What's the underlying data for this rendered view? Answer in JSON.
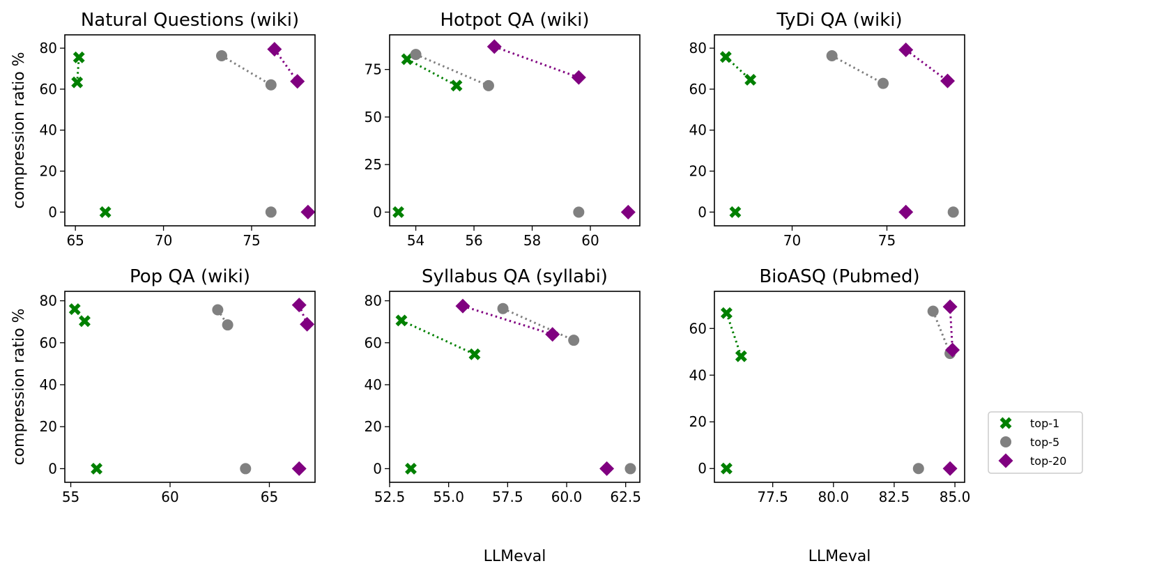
{
  "figure": {
    "ylabel": "compression ratio %",
    "xlabel": "LLMeval"
  },
  "legend": {
    "entries": [
      {
        "label": "top-1",
        "marker": "x-marker",
        "color": "#008000"
      },
      {
        "label": "top-5",
        "marker": "circle",
        "color": "#808080"
      },
      {
        "label": "top-20",
        "marker": "diamond",
        "color": "#800080"
      }
    ],
    "placement": "right"
  },
  "chart_data": [
    {
      "type": "scatter",
      "title": "Natural Questions (wiki)",
      "xlabel": "",
      "ylabel": "compression ratio %",
      "xlim": [
        64.4,
        78.6
      ],
      "ylim": [
        -6.7,
        86.5
      ],
      "xticks": [
        65,
        70,
        75
      ],
      "yticks": [
        0,
        20,
        40,
        60,
        80
      ],
      "xtick_labels": [
        "65",
        "70",
        "75"
      ],
      "ytick_labels": [
        "0",
        "20",
        "40",
        "60",
        "80"
      ],
      "series": [
        {
          "name": "top-1",
          "points": [
            [
              65.2,
              75.5
            ],
            [
              65.1,
              63.3
            ],
            [
              66.7,
              0
            ]
          ],
          "connect": [
            0,
            1
          ]
        },
        {
          "name": "top-5",
          "points": [
            [
              73.3,
              76.3
            ],
            [
              76.1,
              62.1
            ],
            [
              76.1,
              0
            ]
          ],
          "connect": [
            0,
            1
          ]
        },
        {
          "name": "top-20",
          "points": [
            [
              76.3,
              79.5
            ],
            [
              77.6,
              63.8
            ],
            [
              78.2,
              0
            ]
          ],
          "connect": [
            0,
            1
          ]
        }
      ]
    },
    {
      "type": "scatter",
      "title": "Hotpot QA (wiki)",
      "xlabel": "",
      "ylabel": "",
      "xlim": [
        53.1,
        61.7
      ],
      "ylim": [
        -7.2,
        93.2
      ],
      "xticks": [
        54,
        56,
        58,
        60
      ],
      "yticks": [
        0,
        25,
        50,
        75
      ],
      "xtick_labels": [
        "54",
        "56",
        "58",
        "60"
      ],
      "ytick_labels": [
        "0",
        "25",
        "50",
        "75"
      ],
      "series": [
        {
          "name": "top-1",
          "points": [
            [
              53.7,
              80.4
            ],
            [
              55.4,
              66.5
            ],
            [
              53.4,
              0
            ]
          ],
          "connect": [
            0,
            1
          ]
        },
        {
          "name": "top-5",
          "points": [
            [
              54.0,
              82.9
            ],
            [
              56.5,
              66.5
            ],
            [
              59.6,
              0
            ]
          ],
          "connect": [
            0,
            1
          ]
        },
        {
          "name": "top-20",
          "points": [
            [
              56.7,
              87.0
            ],
            [
              59.6,
              70.8
            ],
            [
              61.3,
              0
            ]
          ],
          "connect": [
            0,
            1
          ]
        }
      ]
    },
    {
      "type": "scatter",
      "title": "TyDi QA (wiki)",
      "xlabel": "",
      "ylabel": "",
      "xlim": [
        65.9,
        79.1
      ],
      "ylim": [
        -6.7,
        86.5
      ],
      "xticks": [
        70,
        75
      ],
      "yticks": [
        0,
        20,
        40,
        60,
        80
      ],
      "xtick_labels": [
        "70",
        "75"
      ],
      "ytick_labels": [
        "0",
        "20",
        "40",
        "60",
        "80"
      ],
      "series": [
        {
          "name": "top-1",
          "points": [
            [
              66.5,
              75.7
            ],
            [
              67.8,
              64.6
            ],
            [
              67.0,
              0
            ]
          ],
          "connect": [
            0,
            1
          ]
        },
        {
          "name": "top-5",
          "points": [
            [
              72.1,
              76.3
            ],
            [
              74.8,
              62.8
            ],
            [
              78.5,
              0
            ]
          ],
          "connect": [
            0,
            1
          ]
        },
        {
          "name": "top-20",
          "points": [
            [
              76.0,
              79.2
            ],
            [
              78.2,
              64.0
            ],
            [
              76.0,
              0
            ]
          ],
          "connect": [
            0,
            1
          ]
        }
      ]
    },
    {
      "type": "scatter",
      "title": "Pop QA (wiki)",
      "xlabel": "",
      "ylabel": "compression ratio %",
      "xlim": [
        54.7,
        67.3
      ],
      "ylim": [
        -6.5,
        84.5
      ],
      "xticks": [
        55,
        60,
        65
      ],
      "yticks": [
        0,
        20,
        40,
        60,
        80
      ],
      "xtick_labels": [
        "55",
        "60",
        "65"
      ],
      "ytick_labels": [
        "0",
        "20",
        "40",
        "60",
        "80"
      ],
      "series": [
        {
          "name": "top-1",
          "points": [
            [
              55.2,
              76.0
            ],
            [
              55.7,
              70.3
            ],
            [
              56.3,
              0
            ]
          ],
          "connect": [
            0,
            1
          ]
        },
        {
          "name": "top-5",
          "points": [
            [
              62.4,
              75.7
            ],
            [
              62.9,
              68.5
            ],
            [
              63.8,
              0
            ]
          ],
          "connect": [
            0,
            1
          ]
        },
        {
          "name": "top-20",
          "points": [
            [
              66.5,
              78.0
            ],
            [
              66.9,
              68.8
            ],
            [
              66.5,
              0
            ]
          ],
          "connect": [
            0,
            1
          ]
        }
      ]
    },
    {
      "type": "scatter",
      "title": "Syllabus QA (syllabi)",
      "xlabel": "LLMeval",
      "ylabel": "",
      "xlim": [
        52.5,
        63.1
      ],
      "ylim": [
        -6.5,
        84.5
      ],
      "xticks": [
        52.5,
        55.0,
        57.5,
        60.0,
        62.5
      ],
      "yticks": [
        0,
        20,
        40,
        60,
        80
      ],
      "xtick_labels": [
        "52.5",
        "55.0",
        "57.5",
        "60.0",
        "62.5"
      ],
      "ytick_labels": [
        "0",
        "20",
        "40",
        "60",
        "80"
      ],
      "series": [
        {
          "name": "top-1",
          "points": [
            [
              53.0,
              70.6
            ],
            [
              56.1,
              54.5
            ],
            [
              53.4,
              0
            ]
          ],
          "connect": [
            0,
            1
          ]
        },
        {
          "name": "top-5",
          "points": [
            [
              57.3,
              76.3
            ],
            [
              60.3,
              61.2
            ],
            [
              62.7,
              0
            ]
          ],
          "connect": [
            0,
            1
          ]
        },
        {
          "name": "top-20",
          "points": [
            [
              55.6,
              77.5
            ],
            [
              59.4,
              64.0
            ],
            [
              61.7,
              0
            ]
          ],
          "connect": [
            0,
            1
          ]
        }
      ]
    },
    {
      "type": "scatter",
      "title": "BioASQ (Pubmed)",
      "xlabel": "LLMeval",
      "ylabel": "",
      "xlim": [
        75.1,
        85.4
      ],
      "ylim": [
        -5.9,
        75.9
      ],
      "xticks": [
        77.5,
        80.0,
        82.5,
        85.0
      ],
      "yticks": [
        0,
        20,
        40,
        60
      ],
      "xtick_labels": [
        "77.5",
        "80.0",
        "82.5",
        "85.0"
      ],
      "ytick_labels": [
        "0",
        "20",
        "40",
        "60"
      ],
      "series": [
        {
          "name": "top-1",
          "points": [
            [
              75.6,
              66.6
            ],
            [
              76.2,
              48.1
            ],
            [
              75.6,
              0
            ]
          ],
          "connect": [
            0,
            1
          ]
        },
        {
          "name": "top-5",
          "points": [
            [
              84.1,
              67.4
            ],
            [
              84.8,
              49.3
            ],
            [
              83.5,
              0
            ]
          ],
          "connect": [
            0,
            1
          ]
        },
        {
          "name": "top-20",
          "points": [
            [
              84.8,
              69.3
            ],
            [
              84.9,
              50.8
            ],
            [
              84.8,
              0
            ]
          ],
          "connect": [
            0,
            1
          ]
        }
      ]
    }
  ]
}
